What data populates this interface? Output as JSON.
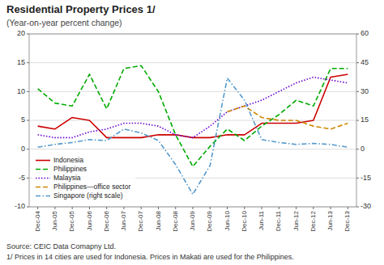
{
  "chart_data": {
    "type": "line",
    "title": "Residential Property Prices 1/",
    "subtitle": "(Year-on-year percent change)",
    "source": "Source: CEIC Data Comapny Ltd.",
    "footnote": "1/ Prices in 14 cities are used for Indonesia. Prices in Makati are used for the Philippines.",
    "categories": [
      "Dec-04",
      "Jun-05",
      "Dec-05",
      "Jun-06",
      "Dec-06",
      "Jun-07",
      "Dec-07",
      "Jun-08",
      "Dec-08",
      "Jun-09",
      "Dec-09",
      "Jun-10",
      "Dec-10",
      "Jun-11",
      "Dec-11",
      "Jun-12",
      "Dec-12",
      "Jun-13",
      "Dec-13"
    ],
    "series": [
      {
        "name": "Indonesia",
        "color": "#cc0000",
        "line_style": "solid",
        "values": [
          4.0,
          3.5,
          5.5,
          5.0,
          2.0,
          2.0,
          2.0,
          2.5,
          2.5,
          2.0,
          2.0,
          2.5,
          2.5,
          4.5,
          4.5,
          4.5,
          5.0,
          12.5,
          13.0
        ]
      },
      {
        "name": "Philippines",
        "color": "#00aa00",
        "line_style": "dashed",
        "values": [
          10.5,
          8.0,
          7.5,
          13.0,
          7.0,
          14.0,
          14.5,
          10.0,
          2.5,
          -3.0,
          0.5,
          3.5,
          1.5,
          4.0,
          6.0,
          8.5,
          7.5,
          14.0,
          14.0
        ]
      },
      {
        "name": "Malaysia",
        "color": "#6600cc",
        "line_style": "dotted",
        "values": [
          2.5,
          2.0,
          2.0,
          3.0,
          3.5,
          4.5,
          4.5,
          4.0,
          2.5,
          2.0,
          4.0,
          6.5,
          7.5,
          8.5,
          10.0,
          11.5,
          12.5,
          12.0,
          11.5
        ]
      },
      {
        "name": "Philippines—office sector",
        "color": "#cc8800",
        "line_style": "dashed",
        "values": [
          null,
          null,
          null,
          null,
          null,
          null,
          null,
          null,
          null,
          null,
          null,
          6.5,
          7.5,
          5.5,
          5.0,
          5.0,
          4.0,
          3.5,
          4.5
        ]
      },
      {
        "name": "Singapore (right scale)",
        "color": "#5599cc",
        "line_style": "dashdot",
        "axis": "y2",
        "values": [
          1.0,
          2.5,
          3.5,
          5.0,
          4.5,
          10.5,
          8.5,
          4.5,
          -8.0,
          -23.5,
          -8.5,
          37.0,
          25.5,
          5.0,
          3.5,
          2.5,
          3.0,
          2.5,
          1.0
        ]
      }
    ],
    "ylim": [
      -10,
      20
    ],
    "yticks": [
      -10,
      -5,
      0,
      5,
      10,
      15,
      20
    ],
    "y2lim": [
      -30,
      60
    ],
    "y2ticks": [
      -30,
      -15,
      0,
      15,
      30,
      45,
      60
    ],
    "grid": true,
    "legend": "lower left"
  }
}
